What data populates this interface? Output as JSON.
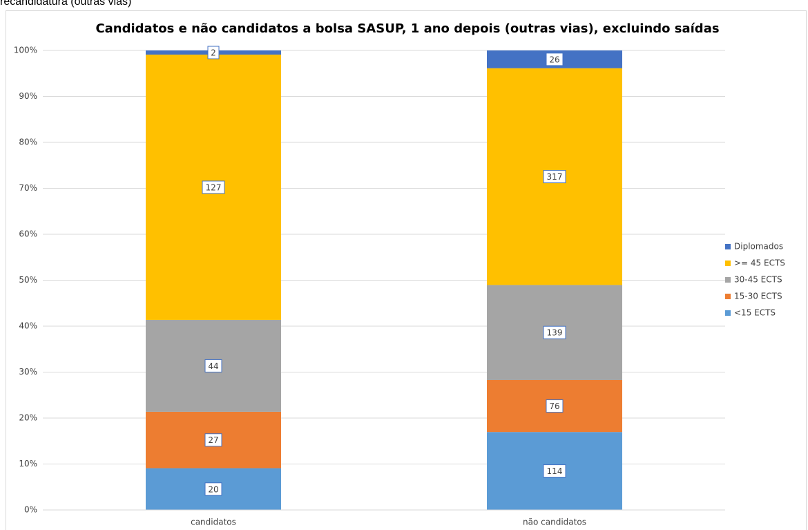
{
  "caption": "recandidatura (outras vias)",
  "chart_data": {
    "type": "bar",
    "stacking": "percent",
    "title": "Candidatos e não candidatos a bolsa SASUP, 1 ano depois (outras vias), excluindo saídas",
    "categories": [
      "candidatos",
      "não candidatos"
    ],
    "series": [
      {
        "name": "<15 ECTS",
        "color": "#5b9bd5",
        "values": [
          20,
          114
        ]
      },
      {
        "name": "15-30 ECTS",
        "color": "#ed7d31",
        "values": [
          27,
          76
        ]
      },
      {
        "name": "30-45 ECTS",
        "color": "#a5a5a5",
        "values": [
          44,
          139
        ]
      },
      {
        "name": ">= 45 ECTS",
        "color": "#ffc000",
        "values": [
          127,
          317
        ]
      },
      {
        "name": "Diplomados",
        "color": "#4472c4",
        "values": [
          2,
          26
        ]
      }
    ],
    "ylim": [
      0,
      100
    ],
    "yticks": [
      {
        "value": 0,
        "label": "0%"
      },
      {
        "value": 10,
        "label": "10%"
      },
      {
        "value": 20,
        "label": "20%"
      },
      {
        "value": 30,
        "label": "30%"
      },
      {
        "value": 40,
        "label": "40%"
      },
      {
        "value": 50,
        "label": "50%"
      },
      {
        "value": 60,
        "label": "60%"
      },
      {
        "value": 70,
        "label": "70%"
      },
      {
        "value": 80,
        "label": "80%"
      },
      {
        "value": 90,
        "label": "90%"
      },
      {
        "value": 100,
        "label": "100%"
      }
    ],
    "grid": true,
    "legend": "right"
  }
}
